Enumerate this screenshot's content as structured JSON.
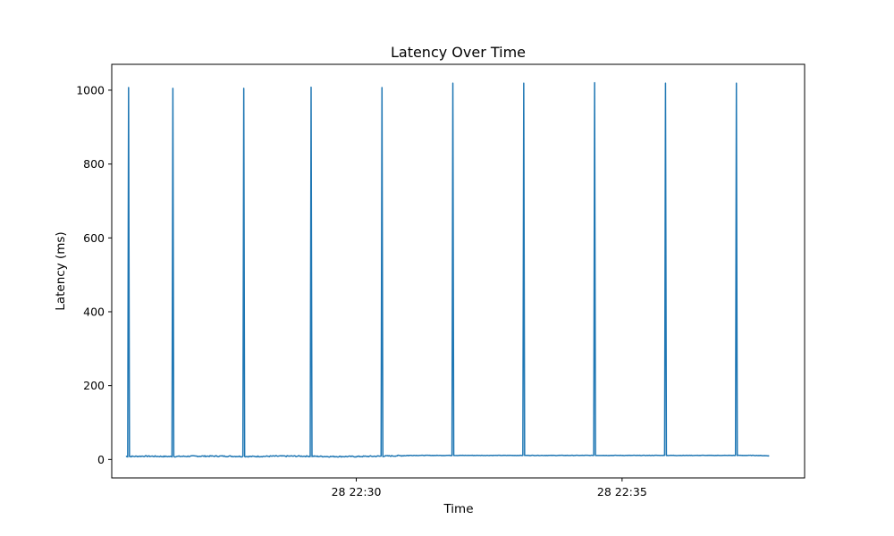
{
  "chart_data": {
    "type": "line",
    "title": "Latency Over Time",
    "xlabel": "Time",
    "ylabel": "Latency (ms)",
    "x_unit": "HH:MM:SS",
    "xlim": [
      "22:25:24",
      "22:38:26"
    ],
    "ylim": [
      -50,
      1070
    ],
    "yticks": [
      0,
      200,
      400,
      600,
      800,
      1000
    ],
    "xticks": [
      {
        "value": "22:30:00",
        "label": "28 22:30"
      },
      {
        "value": "22:35:00",
        "label": "28 22:35"
      }
    ],
    "grid": false,
    "legend": "none",
    "series": [
      {
        "color": "#1f77b4",
        "x_start": "22:25:40",
        "x_end": "22:37:46",
        "baseline_points": [
          [
            "22:25:40",
            8
          ],
          [
            "22:26:00",
            9
          ],
          [
            "22:26:30",
            8
          ],
          [
            "22:27:00",
            9
          ],
          [
            "22:27:30",
            9
          ],
          [
            "22:28:00",
            8
          ],
          [
            "22:28:30",
            9
          ],
          [
            "22:29:00",
            9
          ],
          [
            "22:29:30",
            8
          ],
          [
            "22:30:00",
            8
          ],
          [
            "22:30:30",
            9
          ],
          [
            "22:31:00",
            11
          ],
          [
            "22:31:30",
            11
          ],
          [
            "22:32:00",
            11
          ],
          [
            "22:32:30",
            11
          ],
          [
            "22:33:00",
            11
          ],
          [
            "22:33:30",
            11
          ],
          [
            "22:34:00",
            11
          ],
          [
            "22:34:30",
            11
          ],
          [
            "22:35:00",
            11
          ],
          [
            "22:35:30",
            11
          ],
          [
            "22:36:00",
            11
          ],
          [
            "22:36:30",
            11
          ],
          [
            "22:37:00",
            11
          ],
          [
            "22:37:30",
            11
          ],
          [
            "22:37:46",
            10
          ]
        ],
        "spikes": [
          [
            "22:25:43",
            1007
          ],
          [
            "22:26:33",
            1005
          ],
          [
            "22:27:53",
            1005
          ],
          [
            "22:29:09",
            1008
          ],
          [
            "22:30:29",
            1007
          ],
          [
            "22:31:49",
            1019
          ],
          [
            "22:33:09",
            1019
          ],
          [
            "22:34:29",
            1020
          ],
          [
            "22:35:49",
            1019
          ],
          [
            "22:37:09",
            1019
          ]
        ]
      }
    ]
  }
}
